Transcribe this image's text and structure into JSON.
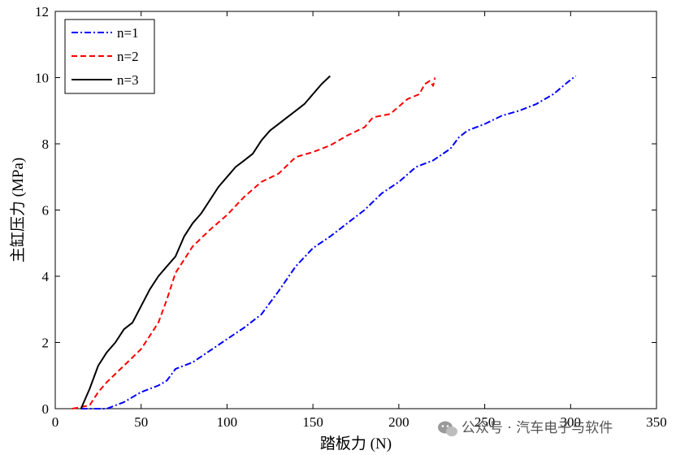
{
  "chart_data": {
    "type": "line",
    "title": "",
    "xlabel": "踏板力 (N)",
    "ylabel": "主缸压力 (MPa)",
    "xlim": [
      0,
      350
    ],
    "ylim": [
      0,
      12
    ],
    "xticks": [
      0,
      50,
      100,
      150,
      200,
      250,
      300,
      350
    ],
    "yticks": [
      0,
      2,
      4,
      6,
      8,
      10,
      12
    ],
    "grid": false,
    "legend_position": "top-left",
    "series": [
      {
        "name": "n=1",
        "color": "#0000ff",
        "dash": "dash-dot",
        "x": [
          15,
          25,
          30,
          40,
          50,
          60,
          65,
          70,
          80,
          90,
          100,
          110,
          120,
          130,
          140,
          150,
          160,
          170,
          180,
          190,
          200,
          210,
          220,
          230,
          235,
          240,
          250,
          260,
          270,
          280,
          290,
          298,
          303
        ],
        "y": [
          0,
          0,
          0,
          0.2,
          0.5,
          0.7,
          0.85,
          1.2,
          1.4,
          1.75,
          2.1,
          2.45,
          2.85,
          3.55,
          4.3,
          4.85,
          5.2,
          5.6,
          6.0,
          6.5,
          6.85,
          7.3,
          7.5,
          7.85,
          8.2,
          8.4,
          8.6,
          8.85,
          9.0,
          9.2,
          9.5,
          9.85,
          10.05
        ]
      },
      {
        "name": "n=2",
        "color": "#ff0000",
        "dash": "dashed",
        "x": [
          10,
          20,
          25,
          30,
          40,
          50,
          55,
          60,
          65,
          70,
          75,
          80,
          90,
          100,
          110,
          120,
          130,
          140,
          150,
          160,
          170,
          180,
          185,
          195,
          205,
          212,
          215,
          218,
          220,
          221
        ],
        "y": [
          0,
          0.1,
          0.5,
          0.8,
          1.3,
          1.8,
          2.2,
          2.6,
          3.3,
          4.1,
          4.5,
          4.9,
          5.4,
          5.85,
          6.4,
          6.85,
          7.1,
          7.6,
          7.75,
          7.95,
          8.25,
          8.5,
          8.8,
          8.9,
          9.35,
          9.5,
          9.8,
          9.9,
          9.75,
          10.0
        ]
      },
      {
        "name": "n=3",
        "color": "#000000",
        "dash": "solid",
        "x": [
          15,
          20,
          25,
          30,
          35,
          40,
          45,
          50,
          55,
          60,
          65,
          70,
          75,
          80,
          85,
          90,
          95,
          100,
          105,
          110,
          115,
          120,
          125,
          130,
          135,
          140,
          145,
          150,
          155,
          160
        ],
        "y": [
          0,
          0.6,
          1.3,
          1.7,
          2.0,
          2.4,
          2.6,
          3.1,
          3.6,
          4.0,
          4.3,
          4.6,
          5.2,
          5.6,
          5.9,
          6.3,
          6.7,
          7.0,
          7.3,
          7.5,
          7.7,
          8.1,
          8.4,
          8.6,
          8.8,
          9.0,
          9.2,
          9.5,
          9.8,
          10.05
        ]
      }
    ]
  },
  "watermark": {
    "icon": "wechat-icon",
    "text": "公众号 · 汽车电子与软件"
  }
}
